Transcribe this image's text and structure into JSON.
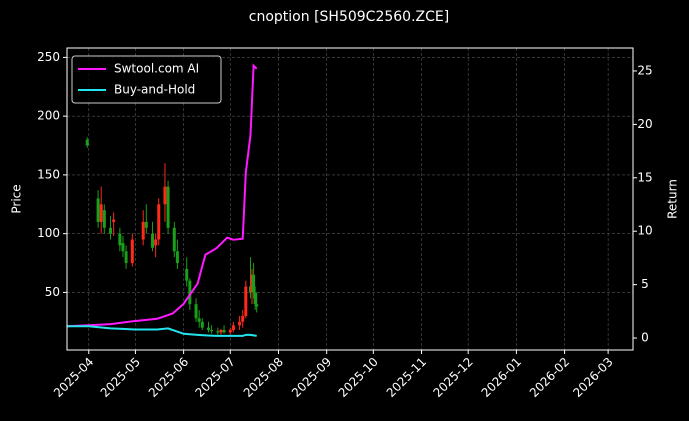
{
  "chart_data": {
    "type": "candlestick",
    "title": "cnoption [SH509C2560.ZCE]",
    "ylabel": "Price",
    "y2label": "Return",
    "x": [
      "2025-03-31",
      "2025-04-07",
      "2025-04-09",
      "2025-04-11",
      "2025-04-15",
      "2025-04-17",
      "2025-04-21",
      "2025-04-23",
      "2025-04-25",
      "2025-04-29",
      "2025-05-06",
      "2025-05-08",
      "2025-05-12",
      "2025-05-14",
      "2025-05-16",
      "2025-05-20",
      "2025-05-22",
      "2025-05-26",
      "2025-05-28",
      "2025-06-03",
      "2025-06-05",
      "2025-06-09",
      "2025-06-11",
      "2025-06-13",
      "2025-06-17",
      "2025-06-19",
      "2025-06-23",
      "2025-06-25",
      "2025-06-27",
      "2025-07-01",
      "2025-07-03",
      "2025-07-07",
      "2025-07-09",
      "2025-07-11",
      "2025-07-14",
      "2025-07-15",
      "2025-07-16",
      "2025-07-17",
      "2025-07-18"
    ],
    "open": [
      180,
      130,
      110,
      120,
      105,
      110,
      100,
      92,
      85,
      75,
      95,
      110,
      100,
      90,
      95,
      125,
      140,
      105,
      85,
      70,
      60,
      40,
      28,
      25,
      20,
      18,
      17,
      16,
      18,
      16,
      18,
      22,
      25,
      30,
      55,
      50,
      65,
      50,
      40
    ],
    "high": [
      182,
      137,
      140,
      125,
      115,
      118,
      105,
      98,
      90,
      100,
      120,
      125,
      110,
      100,
      130,
      160,
      145,
      110,
      95,
      80,
      62,
      45,
      35,
      28,
      25,
      22,
      20,
      19,
      22,
      20,
      25,
      30,
      35,
      60,
      80,
      70,
      75,
      55,
      50
    ],
    "low": [
      173,
      105,
      100,
      100,
      95,
      98,
      85,
      80,
      70,
      72,
      90,
      100,
      85,
      80,
      90,
      110,
      100,
      80,
      70,
      55,
      35,
      25,
      20,
      18,
      16,
      15,
      14,
      14,
      15,
      14,
      16,
      18,
      20,
      28,
      45,
      40,
      45,
      35,
      33
    ],
    "close": [
      175,
      110,
      125,
      105,
      100,
      112,
      90,
      85,
      75,
      95,
      110,
      105,
      88,
      95,
      125,
      140,
      105,
      85,
      75,
      60,
      40,
      28,
      25,
      20,
      18,
      17,
      16,
      18,
      16,
      18,
      22,
      25,
      30,
      55,
      50,
      65,
      50,
      40,
      38
    ],
    "up_color": "#ff2a1a",
    "down_color": "#1aa01a",
    "series": [
      {
        "name": "Swtool.com AI",
        "color": "#ff19ff",
        "axis": "y2",
        "x": [
          "2025-03-18",
          "2025-04-01",
          "2025-04-15",
          "2025-05-01",
          "2025-05-15",
          "2025-05-25",
          "2025-06-01",
          "2025-06-10",
          "2025-06-15",
          "2025-06-22",
          "2025-06-29",
          "2025-07-03",
          "2025-07-09",
          "2025-07-11",
          "2025-07-14",
          "2025-07-16",
          "2025-07-18"
        ],
        "values": [
          1.1,
          1.2,
          1.3,
          1.6,
          1.8,
          2.3,
          3.2,
          5.1,
          7.8,
          8.4,
          9.4,
          9.2,
          9.3,
          15.5,
          19,
          25.5,
          25.2
        ]
      },
      {
        "name": "Buy-and-Hold",
        "color": "#22e5ee",
        "axis": "y2",
        "x": [
          "2025-03-18",
          "2025-04-01",
          "2025-04-15",
          "2025-05-01",
          "2025-05-15",
          "2025-05-22",
          "2025-06-01",
          "2025-06-10",
          "2025-06-15",
          "2025-06-22",
          "2025-06-29",
          "2025-07-03",
          "2025-07-09",
          "2025-07-11",
          "2025-07-14",
          "2025-07-16",
          "2025-07-18"
        ],
        "values": [
          1.1,
          1.1,
          0.9,
          0.8,
          0.8,
          0.9,
          0.4,
          0.3,
          0.25,
          0.2,
          0.2,
          0.2,
          0.2,
          0.3,
          0.3,
          0.25,
          0.2
        ]
      }
    ],
    "xlim": [
      "2025-03-18",
      "2026-03-17"
    ],
    "xticks": [
      {
        "value": "2025-04-01",
        "label": "2025-04"
      },
      {
        "value": "2025-05-01",
        "label": "2025-05"
      },
      {
        "value": "2025-06-01",
        "label": "2025-06"
      },
      {
        "value": "2025-07-01",
        "label": "2025-07"
      },
      {
        "value": "2025-08-01",
        "label": "2025-08"
      },
      {
        "value": "2025-09-01",
        "label": "2025-09"
      },
      {
        "value": "2025-10-01",
        "label": "2025-10"
      },
      {
        "value": "2025-11-01",
        "label": "2025-11"
      },
      {
        "value": "2025-12-01",
        "label": "2025-12"
      },
      {
        "value": "2026-01-01",
        "label": "2026-01"
      },
      {
        "value": "2026-02-01",
        "label": "2026-02"
      },
      {
        "value": "2026-03-01",
        "label": "2026-03"
      }
    ],
    "ylim": [
      1,
      258
    ],
    "yticks": [
      50,
      100,
      150,
      200,
      250
    ],
    "y2lim": [
      -1.12,
      27.15
    ],
    "y2ticks": [
      0,
      5,
      10,
      15,
      20,
      25
    ],
    "grid": true,
    "legend": "upper left"
  }
}
